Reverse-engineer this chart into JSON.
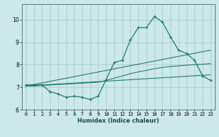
{
  "xlabel": "Humidex (Indice chaleur)",
  "bg_color": "#cce8e8",
  "grid_color": "#aacccc",
  "line_color": "#1a7a6a",
  "xlim": [
    -0.5,
    23.5
  ],
  "ylim": [
    6.0,
    10.7
  ],
  "yticks": [
    6,
    7,
    8,
    9,
    10
  ],
  "xticks": [
    0,
    1,
    2,
    3,
    4,
    5,
    6,
    7,
    8,
    9,
    10,
    11,
    12,
    13,
    14,
    15,
    16,
    17,
    18,
    19,
    20,
    21,
    22,
    23
  ],
  "series1_x": [
    0,
    1,
    2,
    3,
    4,
    5,
    6,
    7,
    8,
    9,
    10,
    11,
    12,
    13,
    14,
    15,
    16,
    17,
    18,
    19,
    20,
    21,
    22,
    23
  ],
  "series1_y": [
    7.1,
    7.1,
    7.1,
    6.8,
    6.7,
    6.55,
    6.6,
    6.55,
    6.45,
    6.6,
    7.35,
    8.1,
    8.2,
    9.1,
    9.65,
    9.65,
    10.15,
    9.9,
    9.25,
    8.65,
    8.5,
    8.2,
    7.5,
    7.3
  ],
  "series2_x": [
    0,
    1,
    2,
    3,
    4,
    5,
    6,
    7,
    8,
    9,
    10,
    11,
    12,
    13,
    14,
    15,
    16,
    17,
    18,
    19,
    20,
    21,
    22,
    23
  ],
  "series2_y": [
    7.05,
    7.05,
    7.08,
    7.1,
    7.12,
    7.14,
    7.16,
    7.18,
    7.2,
    7.22,
    7.3,
    7.4,
    7.5,
    7.6,
    7.68,
    7.75,
    7.82,
    7.88,
    7.92,
    7.95,
    7.98,
    8.0,
    8.02,
    8.05
  ],
  "series3_x": [
    0,
    23
  ],
  "series3_y": [
    7.05,
    8.65
  ],
  "series4_x": [
    0,
    23
  ],
  "series4_y": [
    7.05,
    7.55
  ]
}
